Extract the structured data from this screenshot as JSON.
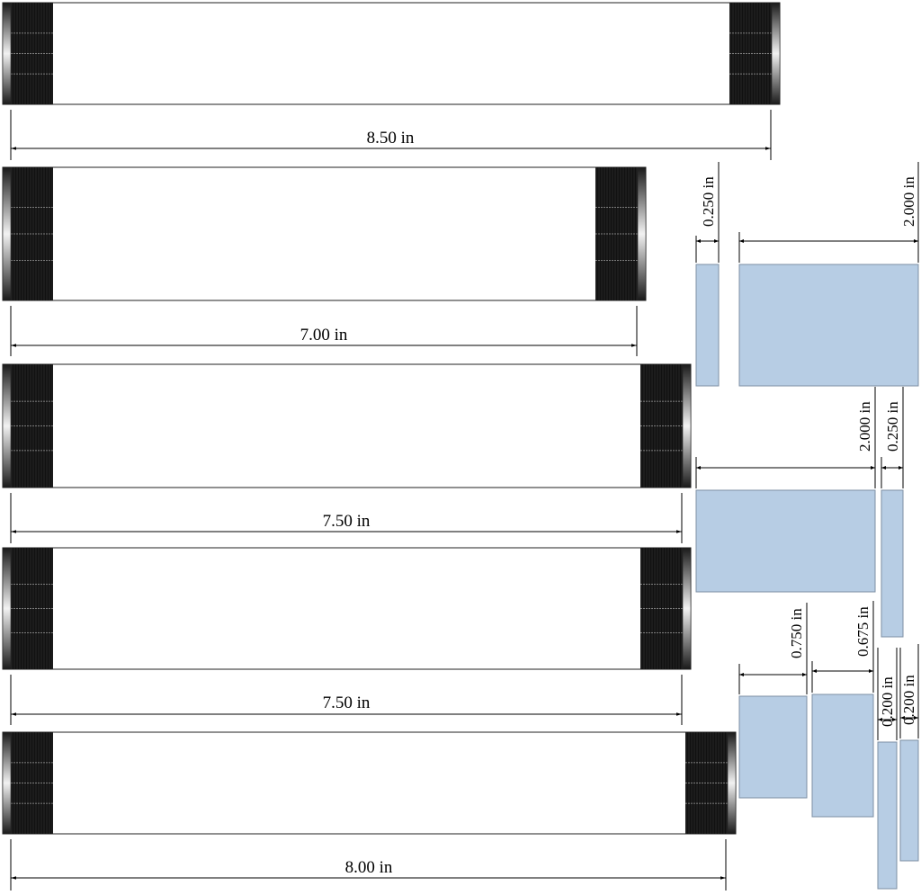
{
  "panels": [
    {
      "dimension_label": "8.50 in"
    },
    {
      "dimension_label": "7.00 in"
    },
    {
      "dimension_label": "7.50 in"
    },
    {
      "dimension_label": "7.50 in"
    },
    {
      "dimension_label": "8.00 in"
    }
  ],
  "parts": {
    "group1": {
      "narrow_label": "0.250 in",
      "wide_label": "2.000 in"
    },
    "group2": {
      "wide_label": "2.000 in",
      "narrow_label": "0.250 in"
    },
    "group3": {
      "label_a": "0.750 in",
      "label_b": "0.675 in",
      "label_c": "0.200 in",
      "label_d": "0.200 in"
    }
  },
  "colors": {
    "part_fill": "#b7cde4",
    "part_stroke": "#7d8fa3",
    "grip": "#111111"
  }
}
